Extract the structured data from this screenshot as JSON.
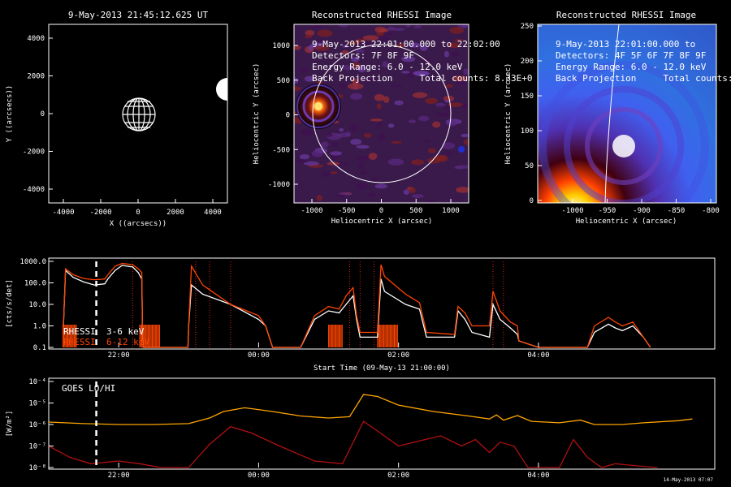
{
  "panels": {
    "sun": {
      "title": "9-May-2013 21:45:12.625 UT",
      "xlabel": "X ((arcsecs))",
      "ylabel": "Y ((arcsecs))",
      "xticks": [
        "-4000",
        "-2000",
        "0",
        "2000",
        "4000"
      ],
      "yticks": [
        "4000",
        "2000",
        "0",
        "-2000",
        "-4000"
      ]
    },
    "img1": {
      "title": "Reconstructed RHESSI Image",
      "xlabel": "Heliocentric X (arcsec)",
      "ylabel": "Heliocentric Y (arcsec)",
      "xticks": [
        "-1000",
        "-500",
        "0",
        "500",
        "1000"
      ],
      "yticks": [
        "1000",
        "500",
        "0",
        "-500",
        "-1000"
      ],
      "overlay": [
        "9-May-2013 22:01:00.000 to 22:02:00",
        "Detectors: 7F 8F 9F",
        "Energy Range: 6.0 - 12.0 keV",
        "Back Projection     Total counts: 8.33E+0"
      ]
    },
    "img2": {
      "title": "Reconstructed RHESSI Image",
      "xlabel": "Heliocentric X (arcsec)",
      "ylabel": "Heliocentric Y (arcsec)",
      "xticks": [
        "-1000",
        "-950",
        "-900",
        "-850",
        "-800"
      ],
      "yticks": [
        "250",
        "200",
        "150",
        "100",
        "50",
        "0"
      ],
      "overlay": [
        "9-May-2013 22:01:00.000 to",
        "Detectors: 4F 5F 6F 7F 8F 9F",
        "Energy Range: 6.0 - 12.0 keV",
        "Back Projection     Total counts:"
      ]
    }
  },
  "colors": {
    "rhessi_low": "#ffffff",
    "rhessi_high": "#ff4500",
    "goes_lo": "#ffa500",
    "goes_hi": "#b01010",
    "grid_dot": "#e02020"
  },
  "chart_data": [
    {
      "type": "line",
      "id": "rhessi",
      "ylabel": "[cts/s/det]",
      "yticks": [
        "1000.0",
        "100.0",
        "10.0",
        "1.0",
        "0.1"
      ],
      "ylim": [
        0.1,
        1000
      ],
      "yscale": "log",
      "xticks": [
        "22:00",
        "00:00",
        "02:00",
        "04:00"
      ],
      "xlabel": "Start Time (09-May-13 21:00:00)",
      "legend": [
        "RHESSI  3-6 keV",
        "RHESSI  6-12 keV"
      ],
      "series": [
        {
          "name": "RHESSI  3-6 keV",
          "color": "#ffffff",
          "points": [
            [
              21.21,
              1
            ],
            [
              21.24,
              380
            ],
            [
              21.35,
              180
            ],
            [
              21.5,
              110
            ],
            [
              21.65,
              80
            ],
            [
              21.8,
              90
            ],
            [
              21.85,
              160
            ],
            [
              21.95,
              380
            ],
            [
              22.05,
              650
            ],
            [
              22.2,
              550
            ],
            [
              22.28,
              300
            ],
            [
              22.33,
              150
            ],
            [
              22.34,
              1
            ],
            [
              22.35,
              0.1
            ],
            [
              22.6,
              0.1
            ],
            [
              22.99,
              0.1
            ],
            [
              23.0,
              1
            ],
            [
              23.04,
              80
            ],
            [
              23.2,
              30
            ],
            [
              23.6,
              10
            ],
            [
              24.0,
              2
            ],
            [
              24.1,
              1
            ],
            [
              24.2,
              0.1
            ],
            [
              24.6,
              0.1
            ],
            [
              24.8,
              2
            ],
            [
              25.0,
              5
            ],
            [
              25.15,
              4
            ],
            [
              25.25,
              10
            ],
            [
              25.35,
              25
            ],
            [
              25.4,
              2
            ],
            [
              25.45,
              0.3
            ],
            [
              25.7,
              0.3
            ],
            [
              25.75,
              150
            ],
            [
              25.8,
              40
            ],
            [
              26.1,
              10
            ],
            [
              26.3,
              6
            ],
            [
              26.4,
              0.3
            ],
            [
              26.8,
              0.3
            ],
            [
              26.85,
              5
            ],
            [
              26.95,
              2
            ],
            [
              27.05,
              0.5
            ],
            [
              27.3,
              0.3
            ],
            [
              27.35,
              10
            ],
            [
              27.45,
              2
            ],
            [
              27.6,
              0.8
            ],
            [
              27.7,
              0.4
            ],
            [
              27.72,
              0.2
            ],
            [
              28.0,
              0.1
            ],
            [
              28.7,
              0.1
            ],
            [
              28.8,
              0.5
            ],
            [
              29.0,
              1.2
            ],
            [
              29.1,
              0.8
            ],
            [
              29.2,
              0.6
            ],
            [
              29.35,
              1.0
            ],
            [
              29.5,
              0.3
            ],
            [
              29.6,
              0.1
            ]
          ]
        },
        {
          "name": "RHESSI  6-12 keV",
          "color": "#ff4500",
          "points": [
            [
              21.21,
              1
            ],
            [
              21.24,
              450
            ],
            [
              21.35,
              240
            ],
            [
              21.5,
              160
            ],
            [
              21.65,
              140
            ],
            [
              21.8,
              150
            ],
            [
              21.85,
              250
            ],
            [
              21.95,
              600
            ],
            [
              22.05,
              800
            ],
            [
              22.2,
              700
            ],
            [
              22.28,
              450
            ],
            [
              22.33,
              300
            ],
            [
              22.34,
              1
            ],
            [
              22.35,
              0.1
            ],
            [
              22.6,
              0.1
            ],
            [
              22.99,
              0.1
            ],
            [
              23.0,
              1
            ],
            [
              23.04,
              600
            ],
            [
              23.2,
              80
            ],
            [
              23.6,
              10
            ],
            [
              24.0,
              3
            ],
            [
              24.1,
              1
            ],
            [
              24.2,
              0.1
            ],
            [
              24.6,
              0.1
            ],
            [
              24.8,
              3
            ],
            [
              25.0,
              8
            ],
            [
              25.15,
              6
            ],
            [
              25.25,
              25
            ],
            [
              25.35,
              60
            ],
            [
              25.4,
              3
            ],
            [
              25.45,
              0.5
            ],
            [
              25.7,
              0.5
            ],
            [
              25.75,
              700
            ],
            [
              25.8,
              200
            ],
            [
              26.1,
              30
            ],
            [
              26.3,
              12
            ],
            [
              26.4,
              0.5
            ],
            [
              26.8,
              0.4
            ],
            [
              26.85,
              8
            ],
            [
              26.95,
              4
            ],
            [
              27.05,
              1
            ],
            [
              27.3,
              1
            ],
            [
              27.35,
              40
            ],
            [
              27.45,
              5
            ],
            [
              27.6,
              1.5
            ],
            [
              27.7,
              1
            ],
            [
              27.72,
              0.2
            ],
            [
              28.0,
              0.1
            ],
            [
              28.7,
              0.1
            ],
            [
              28.8,
              1
            ],
            [
              29.0,
              2.5
            ],
            [
              29.1,
              1.5
            ],
            [
              29.2,
              1.0
            ],
            [
              29.35,
              1.5
            ],
            [
              29.5,
              0.3
            ],
            [
              29.6,
              0.1
            ]
          ]
        }
      ],
      "marker_time": 21.68,
      "flare_lines": [
        22.2,
        23.1,
        23.3,
        23.6,
        25.3,
        25.45,
        25.65,
        27.35,
        27.5
      ]
    },
    {
      "type": "line",
      "id": "goes",
      "ylabel": "[W/m²]",
      "yticks": [
        "10⁻⁴",
        "10⁻⁵",
        "10⁻⁶",
        "10⁻⁷",
        "10⁻⁸"
      ],
      "ylim": [
        1e-08,
        0.0001
      ],
      "yscale": "log",
      "xticks": [
        "22:00",
        "00:00",
        "02:00",
        "04:00"
      ],
      "legend": [
        "GOES LO/HI"
      ],
      "footer": "14-May-2013 07:07",
      "series": [
        {
          "name": "GOES LO",
          "color": "#ffa500",
          "points": [
            [
              21.0,
              1.3e-06
            ],
            [
              21.5,
              1.1e-06
            ],
            [
              22.0,
              1e-06
            ],
            [
              22.5,
              1e-06
            ],
            [
              23.0,
              1.1e-06
            ],
            [
              23.3,
              2e-06
            ],
            [
              23.5,
              4e-06
            ],
            [
              23.8,
              6e-06
            ],
            [
              24.2,
              4e-06
            ],
            [
              24.6,
              2.5e-06
            ],
            [
              25.0,
              2e-06
            ],
            [
              25.3,
              2.3e-06
            ],
            [
              25.5,
              2.5e-05
            ],
            [
              25.7,
              2e-05
            ],
            [
              26.0,
              8e-06
            ],
            [
              26.5,
              4e-06
            ],
            [
              27.0,
              2.5e-06
            ],
            [
              27.3,
              1.8e-06
            ],
            [
              27.4,
              2.8e-06
            ],
            [
              27.5,
              1.6e-06
            ],
            [
              27.7,
              2.6e-06
            ],
            [
              27.9,
              1.4e-06
            ],
            [
              28.3,
              1.2e-06
            ],
            [
              28.6,
              1.6e-06
            ],
            [
              28.8,
              1e-06
            ],
            [
              29.2,
              1e-06
            ],
            [
              29.5,
              1.2e-06
            ],
            [
              30.0,
              1.5e-06
            ],
            [
              30.2,
              1.8e-06
            ]
          ]
        },
        {
          "name": "GOES HI",
          "color": "#b01010",
          "points": [
            [
              21.0,
              1e-07
            ],
            [
              21.3,
              3e-08
            ],
            [
              21.6,
              1.5e-08
            ],
            [
              22.0,
              2e-08
            ],
            [
              22.3,
              1.5e-08
            ],
            [
              22.6,
              1e-08
            ],
            [
              23.0,
              1e-08
            ],
            [
              23.3,
              1.2e-07
            ],
            [
              23.6,
              8e-07
            ],
            [
              23.9,
              4e-07
            ],
            [
              24.3,
              1e-07
            ],
            [
              24.8,
              2e-08
            ],
            [
              25.2,
              1.5e-08
            ],
            [
              25.5,
              1.4e-06
            ],
            [
              25.7,
              5e-07
            ],
            [
              26.0,
              1e-07
            ],
            [
              26.6,
              3e-07
            ],
            [
              26.9,
              1e-07
            ],
            [
              27.1,
              2e-07
            ],
            [
              27.3,
              5e-08
            ],
            [
              27.45,
              1.5e-07
            ],
            [
              27.65,
              1e-07
            ],
            [
              27.85,
              1e-08
            ],
            [
              28.3,
              1e-08
            ],
            [
              28.5,
              2e-07
            ],
            [
              28.7,
              3e-08
            ],
            [
              28.9,
              1e-08
            ],
            [
              29.1,
              1.5e-08
            ],
            [
              29.4,
              1.2e-08
            ],
            [
              29.7,
              1e-08
            ]
          ]
        }
      ],
      "marker_time": 21.68
    }
  ]
}
